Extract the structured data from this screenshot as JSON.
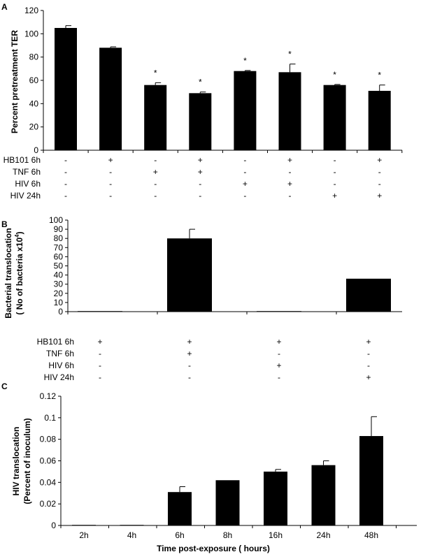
{
  "chart_data": [
    {
      "panel": "A",
      "type": "bar",
      "ylabel": "Percent pretreatment TER",
      "ylim": [
        0,
        120
      ],
      "yticks": [
        0,
        20,
        40,
        60,
        80,
        100,
        120
      ],
      "values": [
        105,
        88,
        56,
        49,
        68,
        67,
        56,
        51
      ],
      "errors": [
        2,
        0.8,
        2,
        1,
        0.5,
        7,
        0.5,
        5
      ],
      "significance": [
        "",
        "",
        "*",
        "*",
        "*",
        "*",
        "*",
        "*"
      ],
      "conditions": [
        {
          "label": "HB101 6h",
          "signs": [
            "-",
            "+",
            "-",
            "+",
            "-",
            "+",
            "-",
            "+"
          ]
        },
        {
          "label": "TNF 6h",
          "signs": [
            "-",
            "-",
            "+",
            "+",
            "-",
            "-",
            "-",
            "-"
          ]
        },
        {
          "label": "HIV 6h",
          "signs": [
            "-",
            "-",
            "-",
            "-",
            "+",
            "+",
            "-",
            "-"
          ]
        },
        {
          "label": "HIV 24h",
          "signs": [
            "-",
            "-",
            "-",
            "-",
            "-",
            "-",
            "+",
            "+"
          ]
        }
      ]
    },
    {
      "panel": "B",
      "type": "bar",
      "ylabel_line1": "Bacterial translocation",
      "ylabel_line2": "( No of bacteria x10",
      "ylabel_sup": "4",
      "ylabel_end": ")",
      "ylim": [
        0,
        100
      ],
      "yticks": [
        0,
        10,
        20,
        30,
        40,
        50,
        60,
        70,
        80,
        90,
        100
      ],
      "values": [
        0,
        80,
        0,
        36
      ],
      "errors": [
        0,
        10,
        0,
        0
      ],
      "conditions": [
        {
          "label": "HB101 6h",
          "signs": [
            "+",
            "+",
            "+",
            "+"
          ]
        },
        {
          "label": "TNF 6h",
          "signs": [
            "-",
            "+",
            "-",
            "-"
          ]
        },
        {
          "label": "HIV  6h",
          "signs": [
            "-",
            "-",
            "+",
            "-"
          ]
        },
        {
          "label": "HIV 24h",
          "signs": [
            "-",
            "-",
            "-",
            "+"
          ]
        }
      ]
    },
    {
      "panel": "C",
      "type": "bar",
      "ylabel_line1": "HIV translocation",
      "ylabel_line2": "(Percent of inoculum)",
      "xlabel": "Time post-exposure ( hours)",
      "ylim": [
        0,
        0.12
      ],
      "yticks": [
        "0",
        "0.02",
        "0.04",
        "0.06",
        "0.08",
        "0.1",
        "0.12"
      ],
      "categories": [
        "2h",
        "4h",
        "6h",
        "8h",
        "16h",
        "24h",
        "48h"
      ],
      "values": [
        0,
        0,
        0.031,
        0.042,
        0.05,
        0.056,
        0.083
      ],
      "errors": [
        0,
        0,
        0.005,
        0,
        0.002,
        0.004,
        0.018
      ]
    }
  ]
}
